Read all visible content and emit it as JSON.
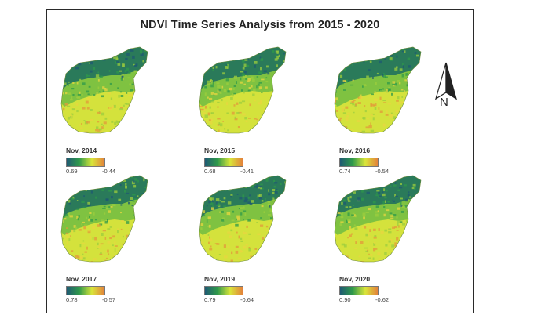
{
  "title": "NDVI Time Series Analysis from 2015 - 2020",
  "north_label": "N",
  "colorbar_colors": [
    "#1f5a73",
    "#2f9a4a",
    "#d9e53a",
    "#e3823a"
  ],
  "panels": [
    {
      "date": "Nov, 2014",
      "max": "0.69",
      "min": "-0.44"
    },
    {
      "date": "Nov, 2015",
      "max": "0.68",
      "min": "-0.41"
    },
    {
      "date": "Nov, 2016",
      "max": "0.74",
      "min": "-0.54"
    },
    {
      "date": "Nov, 2017",
      "max": "0.78",
      "min": "-0.57"
    },
    {
      "date": "Nov, 2019",
      "max": "0.79",
      "min": "-0.64"
    },
    {
      "date": "Nov, 2020",
      "max": "0.90",
      "min": "-0.62"
    }
  ]
}
